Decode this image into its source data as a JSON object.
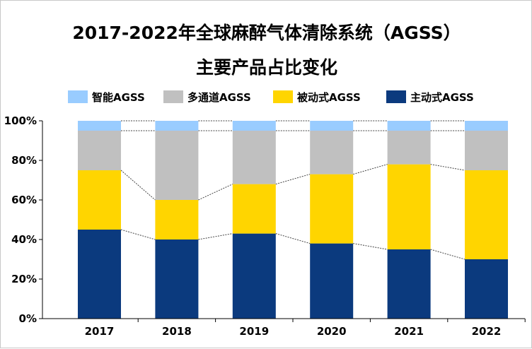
{
  "chart_data": {
    "type": "bar",
    "stacked": true,
    "title_lines": [
      "2017-2022年全球麻醉气体清除系统（AGSS）",
      "主要产品占比变化"
    ],
    "categories": [
      "2017",
      "2018",
      "2019",
      "2020",
      "2021",
      "2022"
    ],
    "series": [
      {
        "name": "主动式AGSS",
        "color": "#0B3A7E",
        "values": [
          45,
          40,
          43,
          38,
          35,
          30
        ]
      },
      {
        "name": "被动式AGSS",
        "color": "#FFD500",
        "values": [
          30,
          20,
          25,
          35,
          43,
          45
        ]
      },
      {
        "name": "多通道AGSS",
        "color": "#C0C0C0",
        "values": [
          20,
          35,
          27,
          22,
          17,
          20
        ]
      },
      {
        "name": "智能AGSS",
        "color": "#99CCFF",
        "values": [
          5,
          5,
          5,
          5,
          5,
          5
        ]
      }
    ],
    "legend_order": [
      3,
      2,
      1,
      0
    ],
    "legend_placement": "top",
    "y_ticks": [
      "0%",
      "20%",
      "40%",
      "60%",
      "80%",
      "100%"
    ],
    "ylim": [
      0,
      100
    ],
    "grid": false,
    "series_lines": "dashed"
  }
}
